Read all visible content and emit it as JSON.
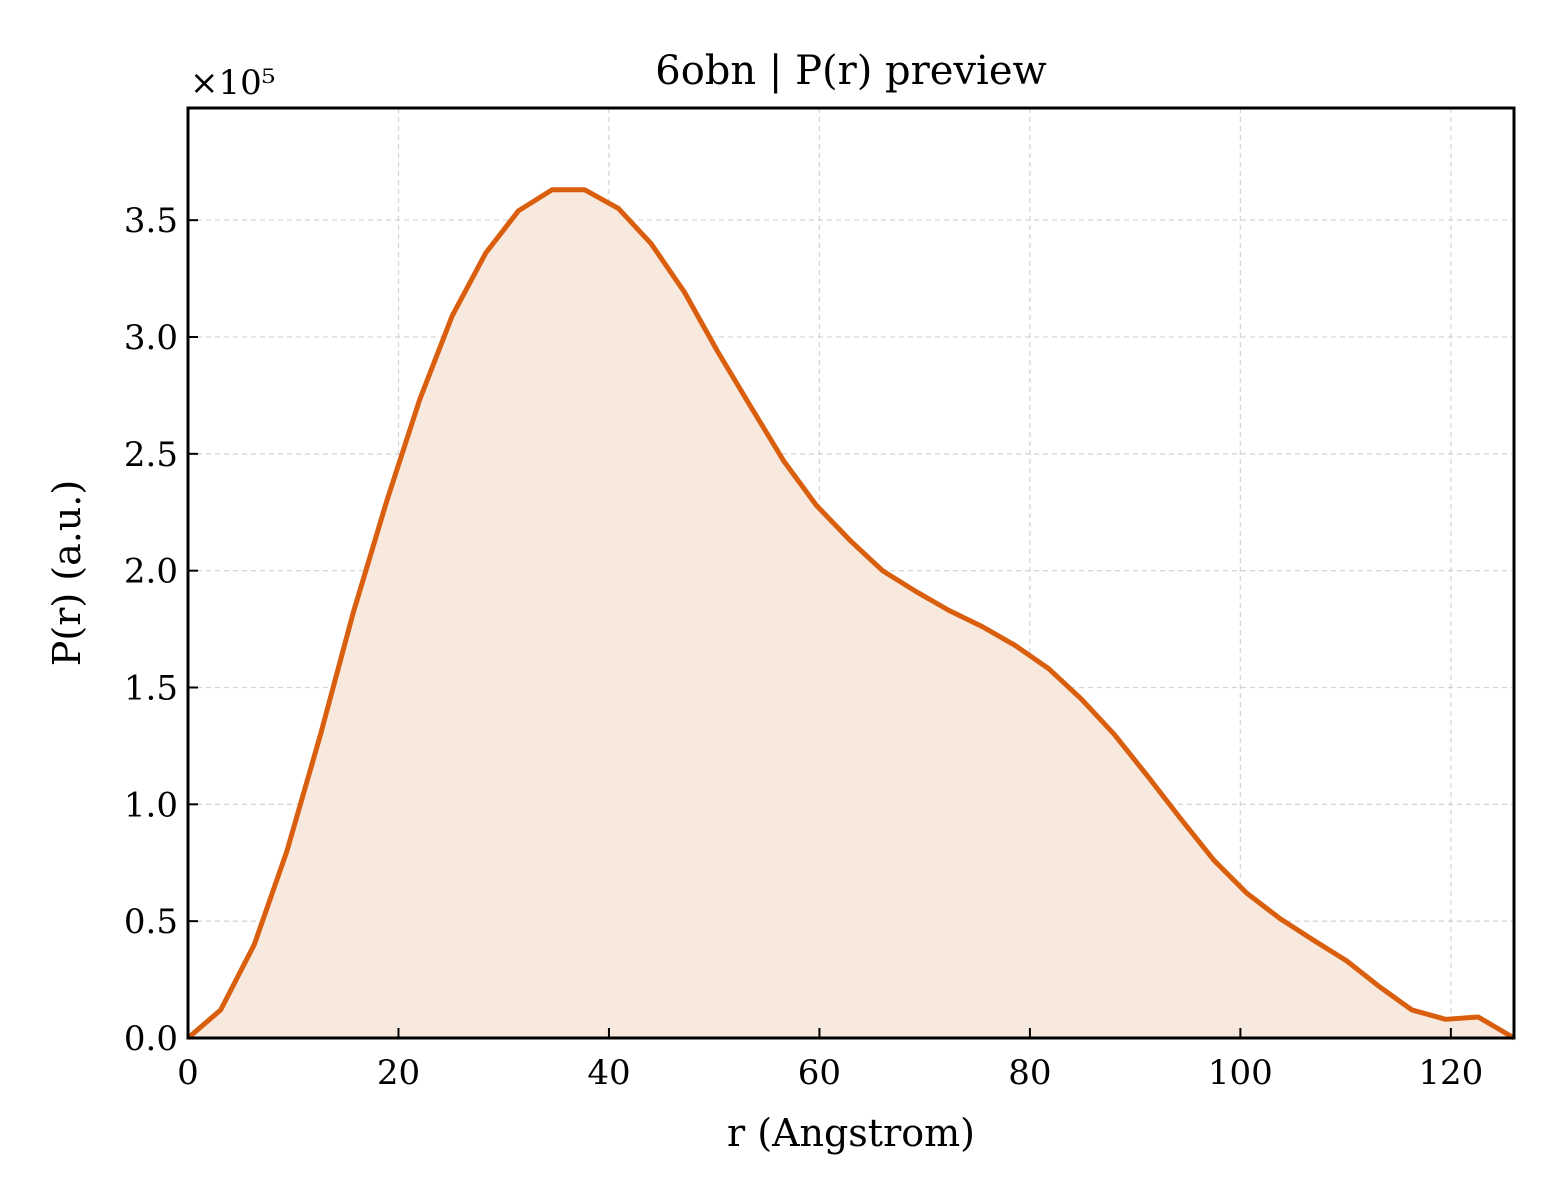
{
  "chart_data": {
    "type": "area",
    "title": "6obn | P(r) preview",
    "xlabel": "r (Angstrom)",
    "ylabel": "P(r) (a.u.)",
    "y_offset_label": "×10⁵",
    "xlim": [
      0,
      126
    ],
    "ylim": [
      0,
      3.98
    ],
    "x_ticks": [
      0,
      20,
      40,
      60,
      80,
      100,
      120
    ],
    "x_tick_labels": [
      "0",
      "20",
      "40",
      "60",
      "80",
      "100",
      "120"
    ],
    "y_ticks": [
      0.0,
      0.5,
      1.0,
      1.5,
      2.0,
      2.5,
      3.0,
      3.5
    ],
    "y_tick_labels": [
      "0.0",
      "0.5",
      "1.0",
      "1.5",
      "2.0",
      "2.5",
      "3.0",
      "3.5"
    ],
    "grid": true,
    "line_color": "#d95f0e",
    "fill_color": "#f8e9df",
    "series": [
      {
        "x": [
          0,
          3.1,
          6.3,
          9.4,
          12.6,
          15.7,
          18.9,
          22.0,
          25.1,
          28.3,
          31.4,
          34.6,
          37.7,
          40.9,
          44.0,
          47.2,
          50.3,
          53.5,
          56.6,
          59.7,
          62.9,
          66.0,
          69.2,
          72.3,
          75.5,
          78.6,
          81.8,
          84.9,
          88.0,
          91.2,
          94.3,
          97.5,
          100.6,
          103.8,
          106.9,
          110.1,
          113.2,
          116.3,
          119.5,
          122.6,
          126.0
        ],
        "y": [
          0.0,
          0.12,
          0.4,
          0.8,
          1.3,
          1.82,
          2.3,
          2.73,
          3.09,
          3.36,
          3.54,
          3.63,
          3.63,
          3.55,
          3.4,
          3.19,
          2.94,
          2.7,
          2.47,
          2.28,
          2.13,
          2.0,
          1.91,
          1.83,
          1.76,
          1.68,
          1.58,
          1.45,
          1.3,
          1.12,
          0.94,
          0.76,
          0.62,
          0.51,
          0.42,
          0.33,
          0.22,
          0.12,
          0.08,
          0.09,
          0.0
        ]
      }
    ]
  }
}
